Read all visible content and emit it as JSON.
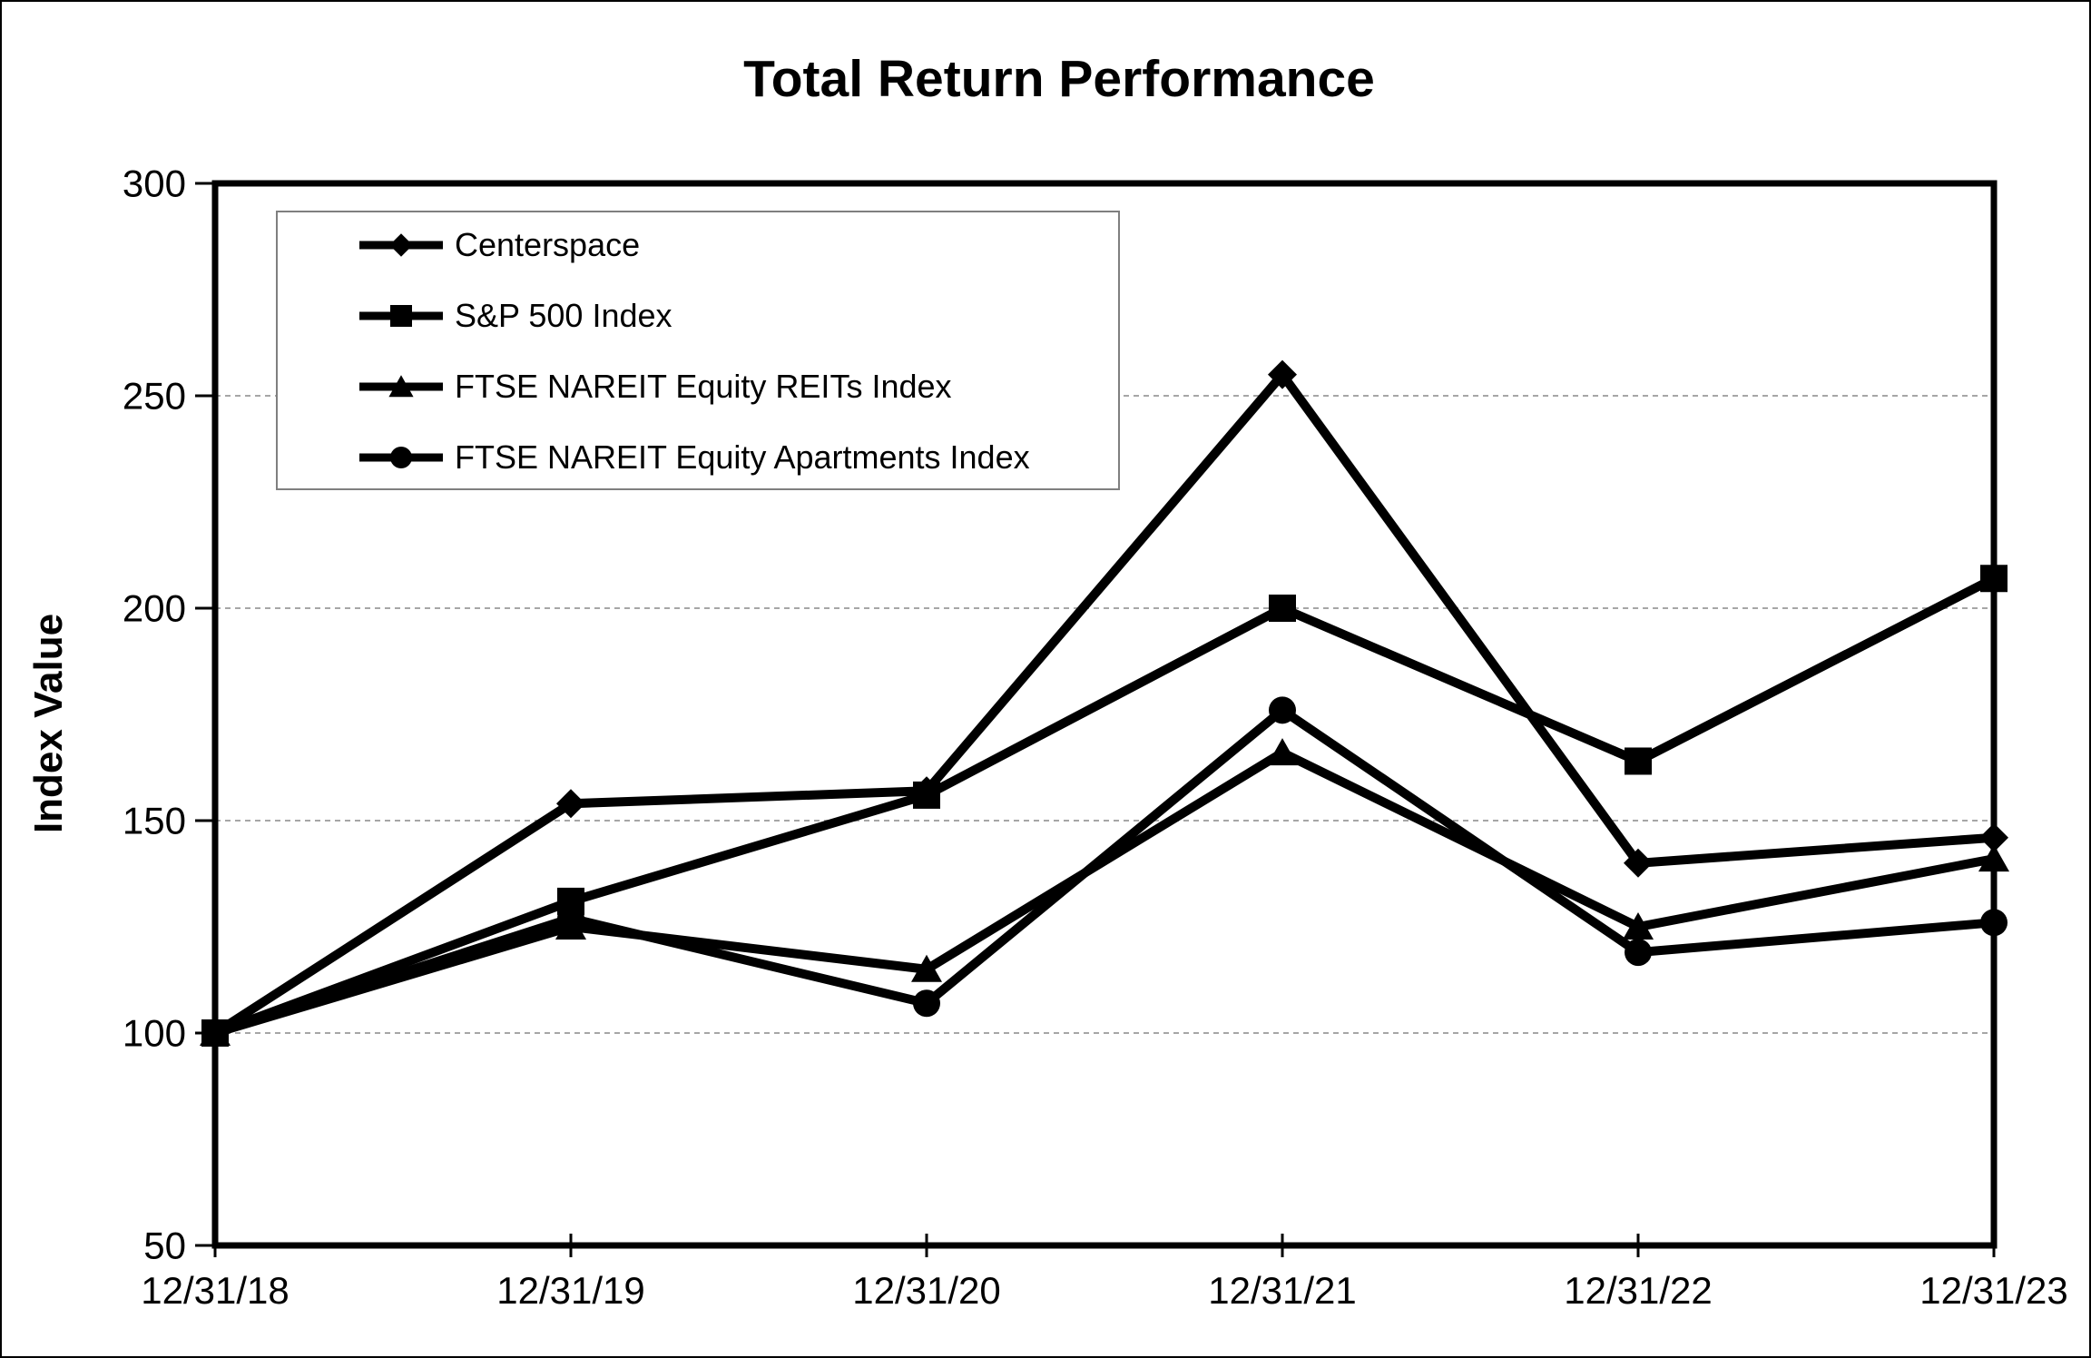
{
  "page": {
    "background": "#ffffff",
    "border_color": "#000000"
  },
  "chart_data": {
    "type": "line",
    "title": "Total Return Performance",
    "ylabel": "Index Value",
    "xlabel": "",
    "categories": [
      "12/31/18",
      "12/31/19",
      "12/31/20",
      "12/31/21",
      "12/31/22",
      "12/31/23"
    ],
    "series": [
      {
        "name": "Centerspace",
        "marker": "diamond",
        "color": "#000000",
        "values": [
          100,
          154,
          157,
          255,
          140,
          146
        ]
      },
      {
        "name": "S&P 500 Index",
        "marker": "square",
        "color": "#000000",
        "values": [
          100,
          131,
          156,
          200,
          164,
          207
        ]
      },
      {
        "name": "FTSE NAREIT Equity REITs Index",
        "marker": "triangle",
        "color": "#000000",
        "values": [
          100,
          125,
          115,
          166,
          125,
          141
        ]
      },
      {
        "name": "FTSE NAREIT Equity Apartments Index",
        "marker": "circle",
        "color": "#000000",
        "values": [
          100,
          127,
          107,
          176,
          119,
          126
        ]
      }
    ],
    "ylim": [
      50,
      300
    ],
    "yticks": [
      50,
      100,
      150,
      200,
      250,
      300
    ],
    "gridlines": [
      100,
      150,
      200,
      250
    ],
    "grid_color": "#a6a6a6",
    "axis_color": "#000000",
    "grid_on": true,
    "legend_position": "upper-left"
  }
}
